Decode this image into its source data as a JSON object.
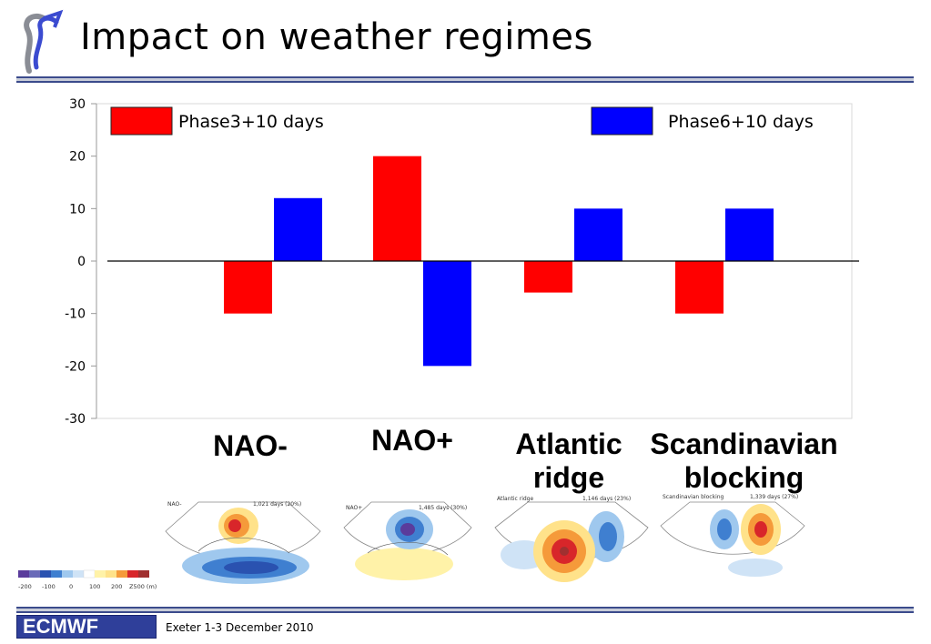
{
  "title": "Impact on weather regimes",
  "footer": {
    "logo_text": "ECMWF",
    "event": "Exeter 1-3 December 2010"
  },
  "colors": {
    "phase3": "#ff0000",
    "phase6": "#0000ff",
    "rule": "#3b4b8c",
    "logo_bg": "#2f3f9a"
  },
  "chart_data": {
    "type": "bar",
    "categories": [
      "NAO-",
      "NAO+",
      "Atlantic ridge",
      "Scandinavian blocking"
    ],
    "category_labels": [
      [
        "NAO-"
      ],
      [
        "NAO+"
      ],
      [
        "Atlantic",
        "ridge"
      ],
      [
        "Scandinavian",
        "blocking"
      ]
    ],
    "series": [
      {
        "name": "Phase3+10 days",
        "color": "#ff0000",
        "values": [
          -10,
          20,
          -6,
          -10
        ]
      },
      {
        "name": "Phase6+10 days",
        "color": "#0000ff",
        "values": [
          12,
          -20,
          10,
          10
        ]
      }
    ],
    "yticks": [
      "30",
      "20",
      "10",
      "0",
      "-10",
      "-20",
      "-30"
    ],
    "ylim": [
      -30,
      30
    ],
    "title": "",
    "xlabel": "",
    "ylabel": "",
    "legend": "top",
    "grid": false
  },
  "regime_maps": [
    {
      "name": "NAO-",
      "days": "1,021 days (20%)"
    },
    {
      "name": "NAO+",
      "days": "1,485 days (30%)"
    },
    {
      "name": "Atlantic ridge",
      "days": "1,146 days (23%)"
    },
    {
      "name": "Scandinavian blocking",
      "days": "1,339 days (27%)"
    }
  ],
  "colorbar": {
    "ticks": [
      "-200",
      "-100",
      "0",
      "100",
      "200"
    ],
    "unit": "Z500 (m)"
  }
}
